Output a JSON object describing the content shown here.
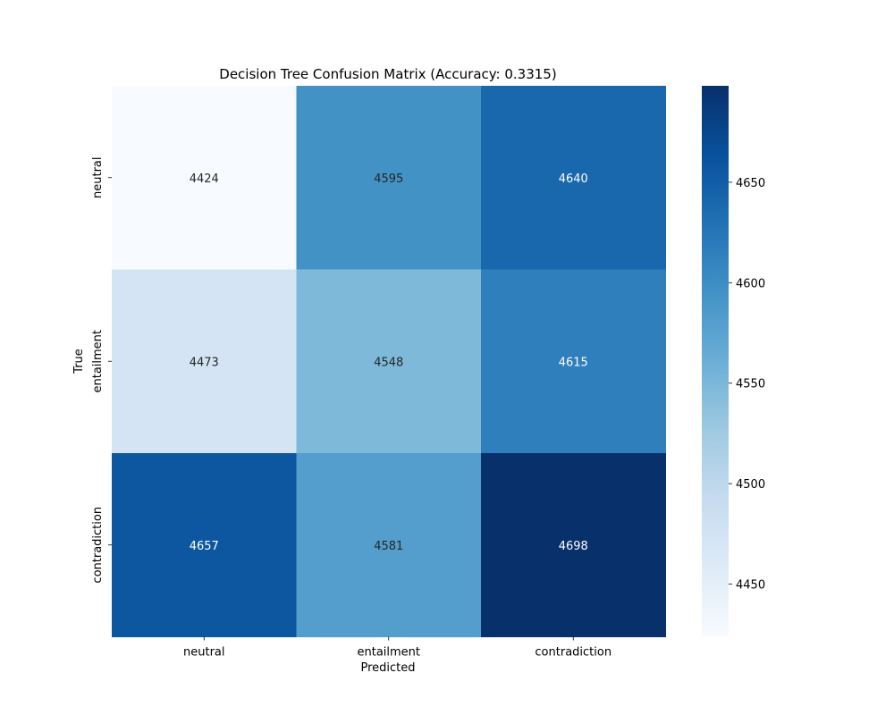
{
  "chart_data": {
    "type": "heatmap",
    "title": "Decision Tree Confusion Matrix (Accuracy: 0.3315)",
    "xlabel": "Predicted",
    "ylabel": "True",
    "x_categories": [
      "neutral",
      "entailment",
      "contradiction"
    ],
    "y_categories": [
      "neutral",
      "entailment",
      "contradiction"
    ],
    "values": [
      [
        4424,
        4595,
        4640
      ],
      [
        4473,
        4548,
        4615
      ],
      [
        4657,
        4581,
        4698
      ]
    ],
    "colormap": "Blues",
    "vmin": 4424,
    "vmax": 4698,
    "colorbar_ticks": [
      4450,
      4500,
      4550,
      4600,
      4650
    ],
    "colorbar_tick_labels": [
      "4450",
      "4500",
      "4550",
      "4600",
      "4650"
    ]
  }
}
